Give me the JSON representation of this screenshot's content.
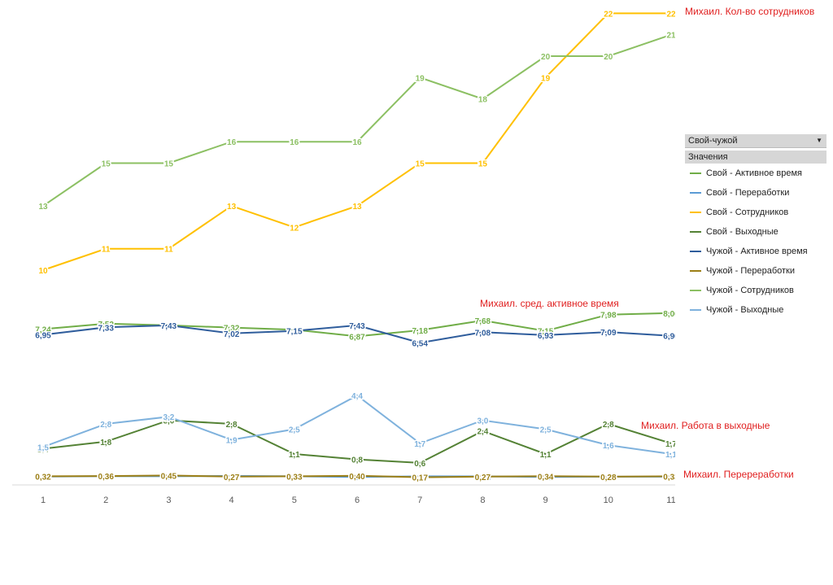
{
  "chart_data": {
    "type": "line",
    "categories": [
      "1",
      "2",
      "3",
      "4",
      "5",
      "6",
      "7",
      "8",
      "9",
      "10",
      "11"
    ],
    "series": [
      {
        "name": "Свой - Активное время",
        "color": "#70ad47",
        "values": [
          7.24,
          7.52,
          7.43,
          7.32,
          7.21,
          6.87,
          7.18,
          7.68,
          7.15,
          7.98,
          8.06
        ],
        "labels": [
          "7,24",
          "7,52",
          "7,43",
          "7,32",
          "7,21",
          "6,87",
          "7,18",
          "7,68",
          "7,15",
          "7,98",
          "8,06"
        ]
      },
      {
        "name": "Свой - Переработки",
        "color": "#5b9bd5",
        "values": [
          0.28,
          0.35,
          0.33,
          0.39,
          0.33,
          0.23,
          0.33,
          0.31,
          0.22,
          0.28,
          0.26
        ],
        "labels": [
          "0,28",
          "0,35",
          "0,33",
          "0,39",
          "0,33",
          "0,23",
          "0,33",
          "0,31",
          "0,22",
          "0,28",
          "0,26"
        ]
      },
      {
        "name": "Свой - Сотрудников",
        "color": "#ffc000",
        "values": [
          10,
          11,
          11,
          13,
          12,
          13,
          15,
          15,
          19,
          22,
          22
        ],
        "labels": [
          "10",
          "11",
          "11",
          "13",
          "12",
          "13",
          "15",
          "15",
          "19",
          "22",
          "22"
        ]
      },
      {
        "name": "Свой - Выходные",
        "color": "#548235",
        "values": [
          1.4,
          1.8,
          3.0,
          2.8,
          1.1,
          0.8,
          0.6,
          2.4,
          1.1,
          2.8,
          1.7
        ],
        "labels": [
          "1,4",
          "1,8",
          "3,0",
          "2,8",
          "1,1",
          "0,8",
          "0,6",
          "2,4",
          "1,1",
          "2,8",
          "1,7"
        ]
      },
      {
        "name": "Чужой - Активное время",
        "color": "#2f5d9c",
        "values": [
          6.95,
          7.33,
          7.43,
          7.02,
          7.15,
          7.43,
          6.54,
          7.08,
          6.93,
          7.09,
          6.9
        ],
        "labels": [
          "6,95",
          "7,33",
          "7,43",
          "7,02",
          "7,15",
          "7,43",
          "6,54",
          "7,08",
          "6,93",
          "7,09",
          "6,90"
        ]
      },
      {
        "name": "Чужой - Переработки",
        "color": "#9c7f16",
        "values": [
          0.32,
          0.36,
          0.45,
          0.27,
          0.33,
          0.4,
          0.17,
          0.27,
          0.34,
          0.28,
          0.33
        ],
        "labels": [
          "0,32",
          "0,36",
          "0,45",
          "0,27",
          "0,33",
          "0,40",
          "0,17",
          "0,27",
          "0,34",
          "0,28",
          "0,33"
        ]
      },
      {
        "name": "Чужой - Сотрудников",
        "color": "#8cc063",
        "values": [
          13,
          15,
          15,
          16,
          16,
          16,
          19,
          18,
          20,
          20,
          21
        ],
        "labels": [
          "13",
          "15",
          "15",
          "16",
          "16",
          "16",
          "19",
          "18",
          "20",
          "20",
          "21"
        ]
      },
      {
        "name": "Чужой - Выходные",
        "color": "#7fb2dd",
        "values": [
          1.5,
          2.8,
          3.2,
          1.9,
          2.5,
          4.4,
          1.7,
          3.0,
          2.5,
          1.6,
          1.1
        ],
        "labels": [
          "1,5",
          "2,8",
          "3,2",
          "1,9",
          "2,5",
          "4,4",
          "1,7",
          "3,0",
          "2,5",
          "1,6",
          "1,1"
        ]
      }
    ],
    "annotations": [
      "Михаил. Кол-во сотрудников",
      "Михаил. сред. активное время",
      "Михаил. Работа в выходные",
      "Михаил. Перереработки"
    ],
    "legend": {
      "filter_label": "Свой-чужой",
      "values_label": "Значения",
      "position": "right"
    },
    "grid": false
  }
}
